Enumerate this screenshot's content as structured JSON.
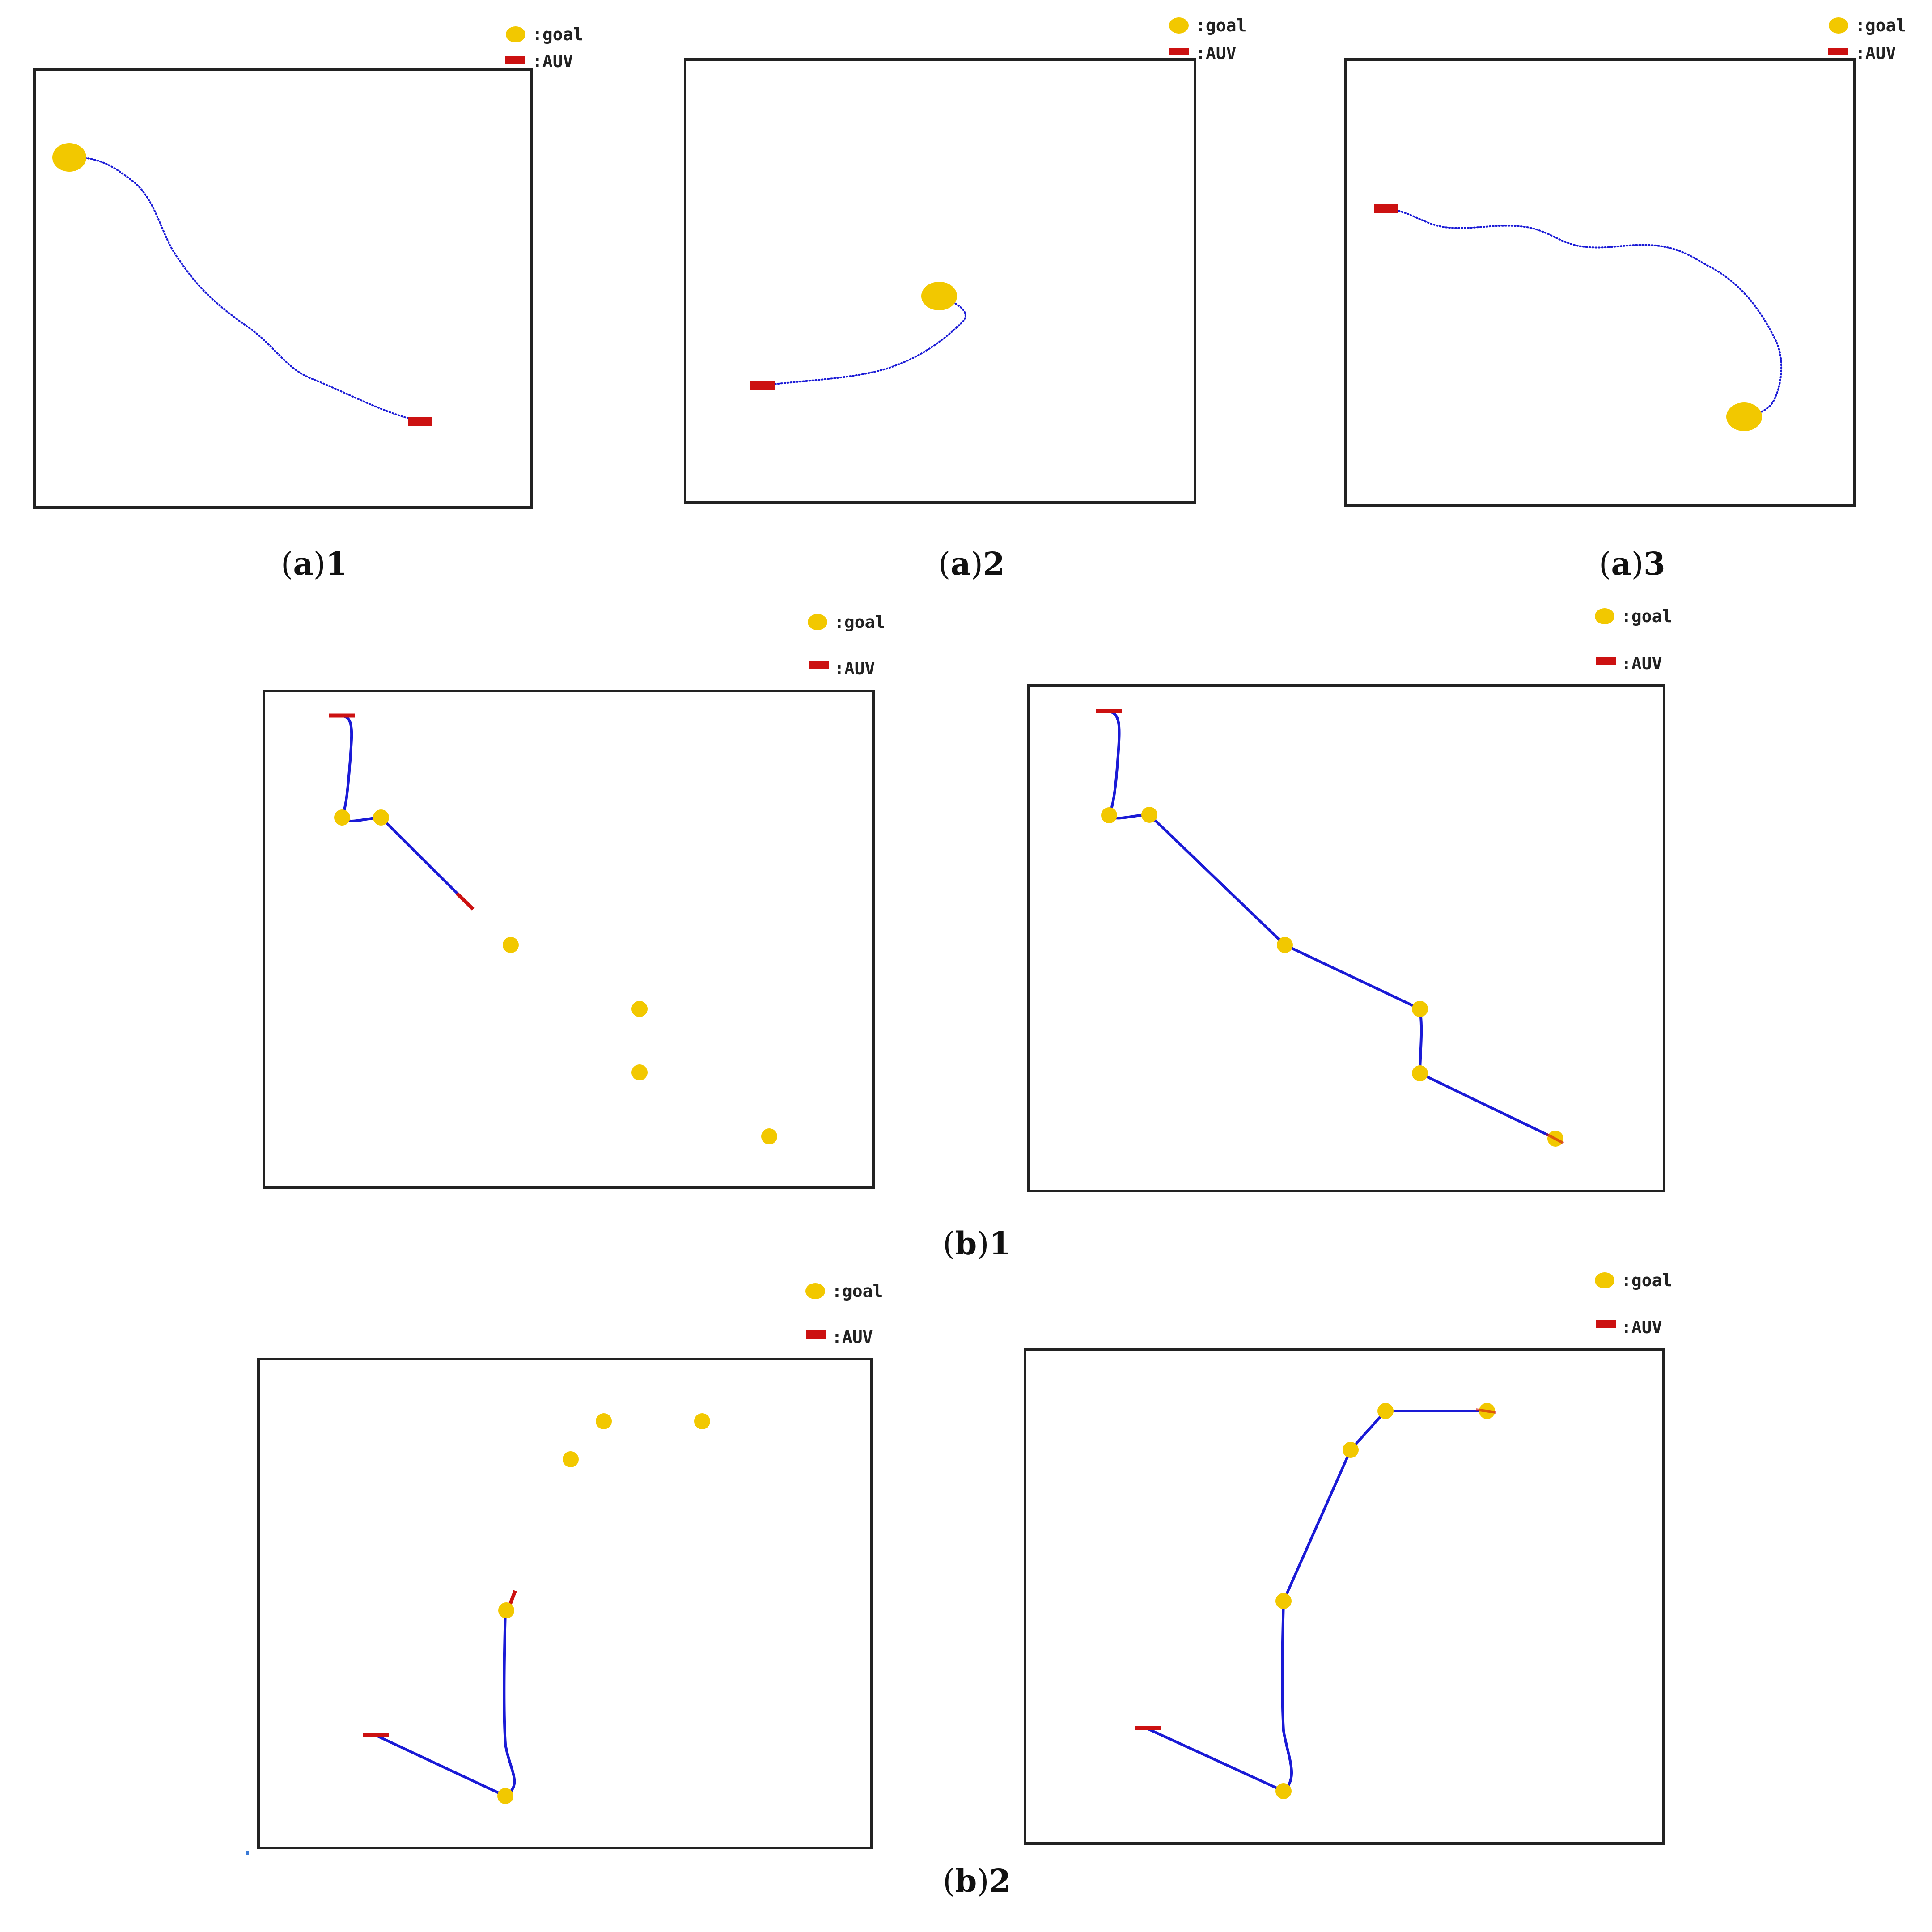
{
  "colors": {
    "goal": "#f2c800",
    "auv": "#cc1111",
    "path": "#1a1ad6",
    "frame": "#222222",
    "background": "#ffffff"
  },
  "legend": {
    "goal_label": ":goal",
    "auv_label": ":AUV"
  },
  "captions": {
    "a1": {
      "letter": "a",
      "number": "1"
    },
    "a2": {
      "letter": "a",
      "number": "2"
    },
    "a3": {
      "letter": "a",
      "number": "3"
    },
    "b1": {
      "letter": "b",
      "number": "1"
    },
    "b2": {
      "letter": "b",
      "number": "2"
    }
  },
  "panels": [
    {
      "id": "a1",
      "group": "a",
      "goals": 1,
      "path_style": "dotted",
      "auv_at": "path-start"
    },
    {
      "id": "a2",
      "group": "a",
      "goals": 1,
      "path_style": "dotted",
      "auv_at": "path-start"
    },
    {
      "id": "a3",
      "group": "a",
      "goals": 1,
      "path_style": "dotted",
      "auv_at": "path-start"
    },
    {
      "id": "b1-left",
      "group": "b1",
      "goals": 6,
      "path_style": "solid",
      "state": "in-progress"
    },
    {
      "id": "b1-right",
      "group": "b1",
      "goals": 6,
      "path_style": "solid",
      "state": "completed"
    },
    {
      "id": "b2-left",
      "group": "b2",
      "goals": 5,
      "path_style": "solid",
      "state": "in-progress"
    },
    {
      "id": "b2-right",
      "group": "b2",
      "goals": 5,
      "path_style": "solid",
      "state": "completed"
    }
  ]
}
